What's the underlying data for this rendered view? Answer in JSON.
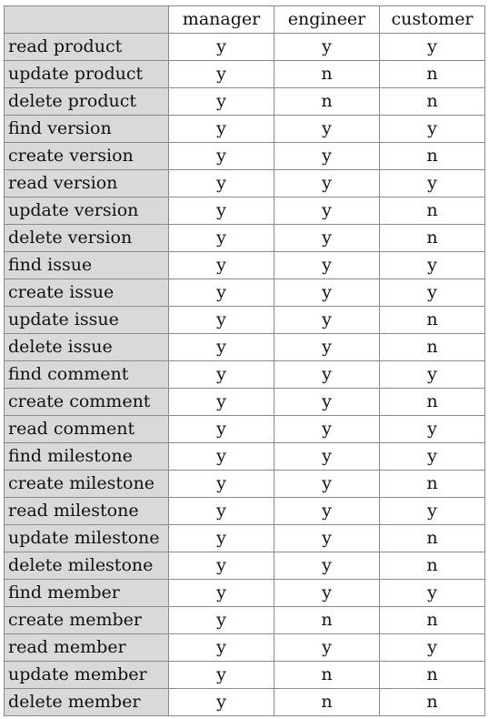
{
  "table": {
    "corner": "",
    "columns": [
      "manager",
      "engineer",
      "customer"
    ],
    "rows": [
      {
        "action": "read product",
        "values": [
          "y",
          "y",
          "y"
        ]
      },
      {
        "action": "update product",
        "values": [
          "y",
          "n",
          "n"
        ]
      },
      {
        "action": "delete product",
        "values": [
          "y",
          "n",
          "n"
        ]
      },
      {
        "action": "find version",
        "values": [
          "y",
          "y",
          "y"
        ]
      },
      {
        "action": "create version",
        "values": [
          "y",
          "y",
          "n"
        ]
      },
      {
        "action": "read version",
        "values": [
          "y",
          "y",
          "y"
        ]
      },
      {
        "action": "update version",
        "values": [
          "y",
          "y",
          "n"
        ]
      },
      {
        "action": "delete version",
        "values": [
          "y",
          "y",
          "n"
        ]
      },
      {
        "action": "find issue",
        "values": [
          "y",
          "y",
          "y"
        ]
      },
      {
        "action": "create issue",
        "values": [
          "y",
          "y",
          "y"
        ]
      },
      {
        "action": "update issue",
        "values": [
          "y",
          "y",
          "n"
        ]
      },
      {
        "action": "delete issue",
        "values": [
          "y",
          "y",
          "n"
        ]
      },
      {
        "action": "find comment",
        "values": [
          "y",
          "y",
          "y"
        ]
      },
      {
        "action": "create comment",
        "values": [
          "y",
          "y",
          "n"
        ]
      },
      {
        "action": "read comment",
        "values": [
          "y",
          "y",
          "y"
        ]
      },
      {
        "action": "find milestone",
        "values": [
          "y",
          "y",
          "y"
        ]
      },
      {
        "action": "create milestone",
        "values": [
          "y",
          "y",
          "n"
        ]
      },
      {
        "action": "read milestone",
        "values": [
          "y",
          "y",
          "y"
        ]
      },
      {
        "action": "update milestone",
        "values": [
          "y",
          "y",
          "n"
        ]
      },
      {
        "action": "delete milestone",
        "values": [
          "y",
          "y",
          "n"
        ]
      },
      {
        "action": "find member",
        "values": [
          "y",
          "y",
          "y"
        ]
      },
      {
        "action": "create member",
        "values": [
          "y",
          "n",
          "n"
        ]
      },
      {
        "action": "read member",
        "values": [
          "y",
          "y",
          "y"
        ]
      },
      {
        "action": "update member",
        "values": [
          "y",
          "n",
          "n"
        ]
      },
      {
        "action": "delete member",
        "values": [
          "y",
          "n",
          "n"
        ]
      }
    ]
  }
}
